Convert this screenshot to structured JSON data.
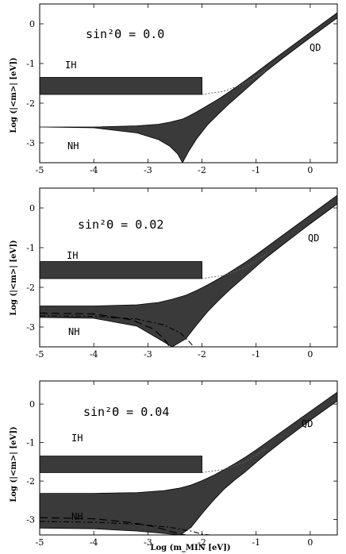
{
  "chart_data": [
    {
      "type": "area",
      "panel": "top",
      "annotation": "sin²Θ = 0.0",
      "labels": {
        "ih": "IH",
        "nh": "NH",
        "qd": "QD"
      },
      "ylabel": "Log (|<m>| [eV])",
      "xlabel": "",
      "xlim": [
        -5,
        0.5
      ],
      "ylim": [
        -3.5,
        0.5
      ],
      "xticks": [
        "-5",
        "-4",
        "-3",
        "-2",
        "-1",
        "0"
      ],
      "yticks": [
        "0",
        "-1",
        "-2",
        "-3"
      ],
      "ih_band": {
        "x": [
          -5,
          -2.0
        ],
        "lower": -1.78,
        "upper": -1.35
      },
      "nh_band": {
        "x": [
          -5,
          -4,
          -3.2,
          -2.8,
          -2.6,
          -2.45,
          -2.36,
          -2.25,
          -2.1,
          -1.9,
          -1.7,
          -1.5,
          -1.2,
          -1.0,
          -0.8,
          -0.5,
          0.0,
          0.5
        ],
        "upper": [
          -2.6,
          -2.6,
          -2.57,
          -2.53,
          -2.48,
          -2.43,
          -2.4,
          -2.33,
          -2.22,
          -2.06,
          -1.9,
          -1.72,
          -1.43,
          -1.23,
          -1.02,
          -0.72,
          -0.22,
          0.28
        ],
        "lower": [
          -2.6,
          -2.62,
          -2.75,
          -2.92,
          -3.08,
          -3.28,
          -3.5,
          -3.22,
          -2.9,
          -2.55,
          -2.28,
          -2.02,
          -1.66,
          -1.42,
          -1.18,
          -0.86,
          -0.35,
          0.15
        ]
      },
      "dotted_curve": {
        "x": [
          -2.0,
          -1.6,
          -1.2,
          -0.8
        ],
        "y": [
          -1.78,
          -1.7,
          -1.5,
          -1.15
        ]
      }
    },
    {
      "type": "area",
      "panel": "middle",
      "annotation": "sin²Θ = 0.02",
      "labels": {
        "ih": "IH",
        "nh": "NH",
        "qd": "QD"
      },
      "ylabel": "Log (|<m>| [eV])",
      "xlabel": "",
      "xlim": [
        -5,
        0.5
      ],
      "ylim": [
        -3.5,
        0.5
      ],
      "xticks": [
        "-5",
        "-4",
        "-3",
        "-2",
        "-1",
        "0"
      ],
      "yticks": [
        "0",
        "-1",
        "-2",
        "-3"
      ],
      "ih_band": {
        "x": [
          -5,
          -2.0
        ],
        "lower": -1.78,
        "upper": -1.35
      },
      "nh_band": {
        "x": [
          -5,
          -4,
          -3.2,
          -2.8,
          -2.55,
          -2.3,
          -2.1,
          -1.9,
          -1.7,
          -1.5,
          -1.2,
          -1.0,
          -0.8,
          -0.5,
          0.0,
          0.5
        ],
        "upper": [
          -2.47,
          -2.47,
          -2.44,
          -2.38,
          -2.3,
          -2.2,
          -2.08,
          -1.94,
          -1.79,
          -1.63,
          -1.37,
          -1.18,
          -0.98,
          -0.68,
          -0.18,
          0.32
        ],
        "lower": [
          -2.76,
          -2.78,
          -2.98,
          -3.3,
          -3.5,
          -3.3,
          -2.95,
          -2.62,
          -2.34,
          -2.08,
          -1.72,
          -1.48,
          -1.24,
          -0.92,
          -0.4,
          0.1
        ]
      },
      "dash_curve": {
        "x": [
          -5,
          -4,
          -3.3,
          -2.9,
          -2.7,
          -2.6
        ],
        "y": [
          -2.65,
          -2.67,
          -2.82,
          -3.05,
          -3.3,
          -3.5
        ]
      },
      "dashdot_curve": {
        "x": [
          -5,
          -4,
          -3.2,
          -2.7,
          -2.4,
          -2.25,
          -2.15
        ],
        "y": [
          -2.72,
          -2.73,
          -2.8,
          -2.95,
          -3.15,
          -3.35,
          -3.5
        ]
      },
      "dotted_curve": {
        "x": [
          -2.0,
          -1.6,
          -1.2,
          -0.8
        ],
        "y": [
          -1.78,
          -1.7,
          -1.5,
          -1.15
        ]
      }
    },
    {
      "type": "area",
      "panel": "bottom",
      "annotation": "sin²Θ = 0.04",
      "labels": {
        "ih": "IH",
        "nh": "NH",
        "qd": "QD"
      },
      "ylabel": "Log (|<m>| [eV])",
      "xlabel": "Log (m_MIN [eV])",
      "xlim": [
        -5,
        0.5
      ],
      "ylim": [
        -3.4,
        0.6
      ],
      "xticks": [
        "-5",
        "-4",
        "-3",
        "-2",
        "-1",
        "0"
      ],
      "yticks": [
        "0",
        "-1",
        "-2",
        "-3"
      ],
      "ih_band": {
        "x": [
          -5,
          -2.0
        ],
        "lower": -1.78,
        "upper": -1.35
      },
      "nh_band": {
        "x": [
          -5,
          -4,
          -3.2,
          -2.7,
          -2.4,
          -2.2,
          -2.0,
          -1.8,
          -1.6,
          -1.4,
          -1.2,
          -1.0,
          -0.8,
          -0.5,
          0.0,
          0.5
        ],
        "upper": [
          -2.32,
          -2.32,
          -2.3,
          -2.25,
          -2.18,
          -2.1,
          -1.99,
          -1.86,
          -1.71,
          -1.55,
          -1.38,
          -1.19,
          -0.99,
          -0.69,
          -0.19,
          0.31
        ],
        "lower": [
          -3.22,
          -3.24,
          -3.3,
          -3.36,
          -3.4,
          -3.2,
          -2.85,
          -2.52,
          -2.22,
          -1.98,
          -1.76,
          -1.52,
          -1.28,
          -0.95,
          -0.42,
          0.08
        ]
      },
      "dash_curve": {
        "x": [
          -5,
          -4,
          -3.3,
          -2.9,
          -2.6,
          -2.4,
          -2.3
        ],
        "y": [
          -2.95,
          -2.98,
          -3.08,
          -3.18,
          -3.3,
          -3.38,
          -3.4
        ]
      },
      "dashdot_curve": {
        "x": [
          -5,
          -4,
          -3.2,
          -2.6,
          -2.2,
          -2.0,
          -1.85
        ],
        "y": [
          -3.05,
          -3.07,
          -3.12,
          -3.2,
          -3.3,
          -3.38,
          -3.4
        ]
      },
      "dotted_curve": {
        "x": [
          -2.0,
          -1.6,
          -1.2,
          -0.8
        ],
        "y": [
          -1.78,
          -1.7,
          -1.5,
          -1.15
        ]
      }
    }
  ]
}
